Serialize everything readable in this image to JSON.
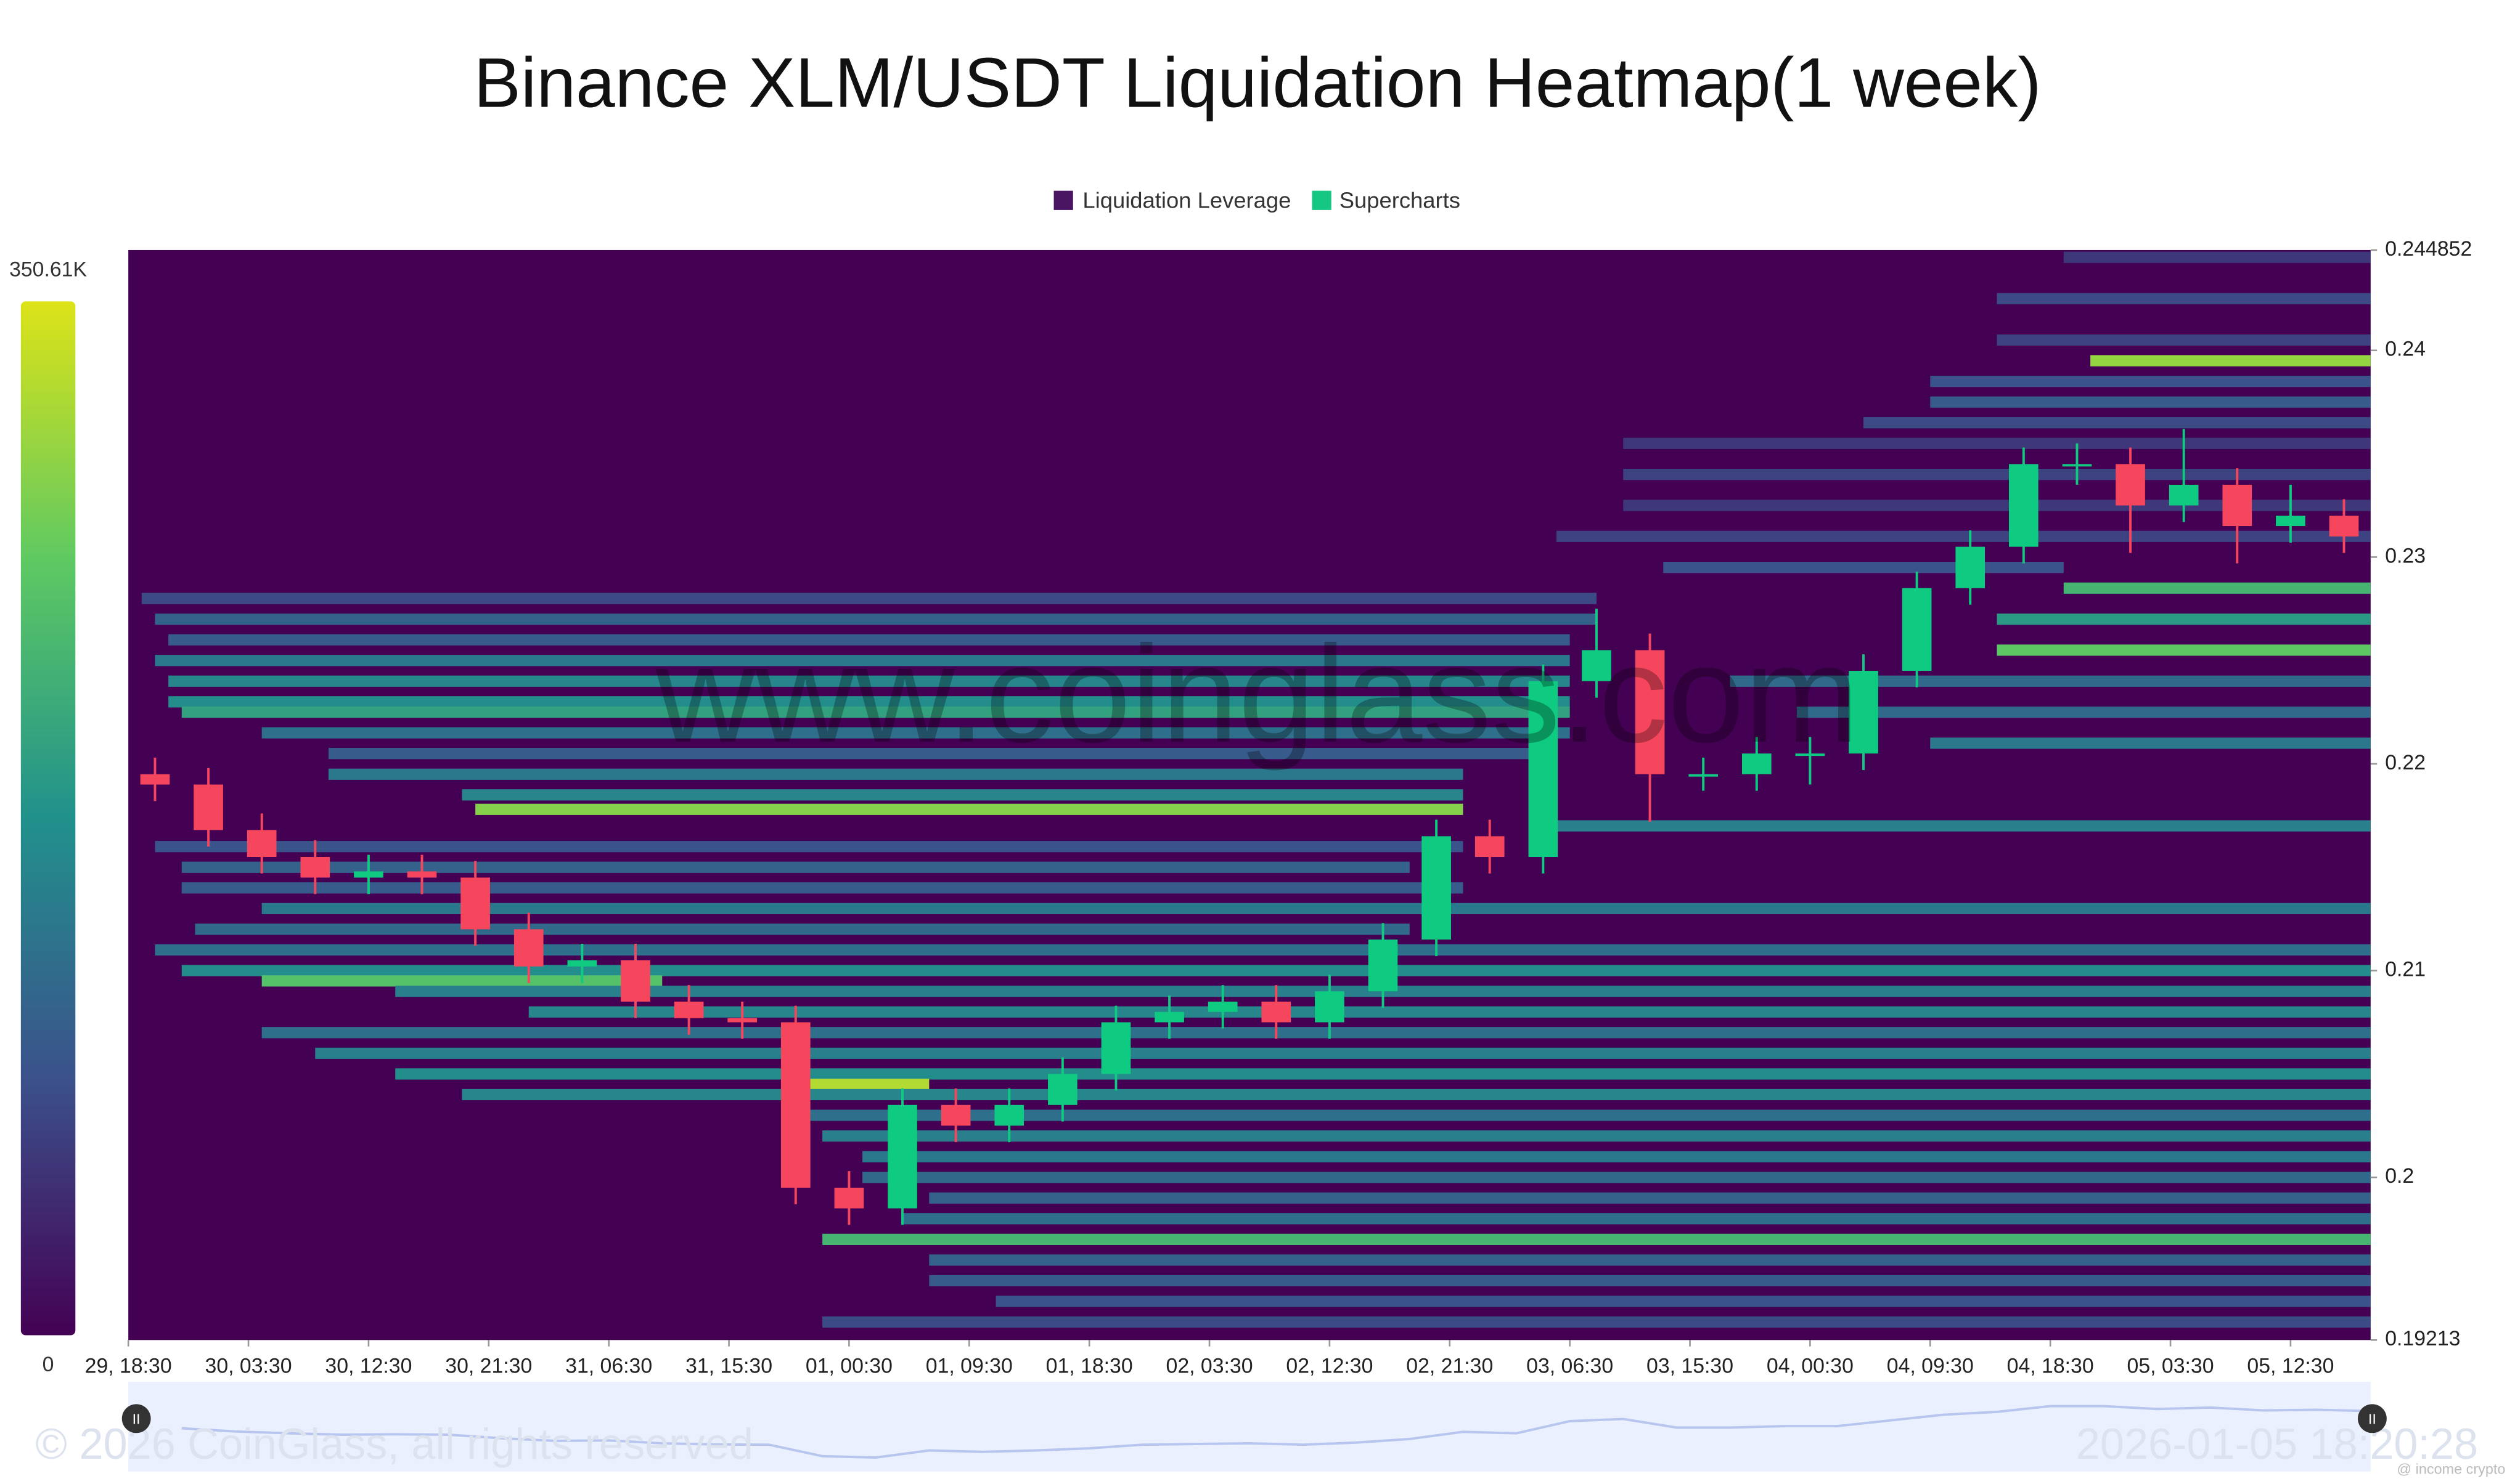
{
  "chart_data": {
    "type": "heatmap",
    "title": "Binance XLM/USDT Liquidation Heatmap(1 week)",
    "watermark": "www.coinglass.com",
    "footer_left": "© 2026 CoinGlass, all rights reserved",
    "footer_right": "2026-01-05 18:20:28",
    "credit": "@ income crypto",
    "xlim": [
      0,
      168
    ],
    "xticks": [
      {
        "value": 0,
        "label": "29, 18:30"
      },
      {
        "value": 9,
        "label": "30, 03:30"
      },
      {
        "value": 18,
        "label": "30, 12:30"
      },
      {
        "value": 27,
        "label": "30, 21:30"
      },
      {
        "value": 36,
        "label": "31, 06:30"
      },
      {
        "value": 45,
        "label": "31, 15:30"
      },
      {
        "value": 54,
        "label": "01, 00:30"
      },
      {
        "value": 63,
        "label": "01, 09:30"
      },
      {
        "value": 72,
        "label": "01, 18:30"
      },
      {
        "value": 81,
        "label": "02, 03:30"
      },
      {
        "value": 90,
        "label": "02, 12:30"
      },
      {
        "value": 99,
        "label": "02, 21:30"
      },
      {
        "value": 108,
        "label": "03, 06:30"
      },
      {
        "value": 117,
        "label": "03, 15:30"
      },
      {
        "value": 126,
        "label": "04, 00:30"
      },
      {
        "value": 135,
        "label": "04, 09:30"
      },
      {
        "value": 144,
        "label": "04, 18:30"
      },
      {
        "value": 153,
        "label": "05, 03:30"
      },
      {
        "value": 162,
        "label": "05, 12:30"
      }
    ],
    "ylim": [
      0.19213,
      0.244852
    ],
    "yticks": [
      0.19213,
      0.2,
      0.21,
      0.22,
      0.23,
      0.24,
      0.244852
    ],
    "colorbar": {
      "min": 0,
      "max": {
        "value": 350610,
        "label": "350.61K"
      }
    },
    "colorscale": [
      "#440154",
      "#3b528b",
      "#21918c",
      "#5ec962",
      "#dde318"
    ],
    "up_color": "#0ecb81",
    "down_color": "#f6465d",
    "series": [
      {
        "name": "Liquidation Leverage",
        "color": "#4a1663",
        "bands": [
          [
            0.2445,
            145,
            168,
            60000
          ],
          [
            0.2425,
            140,
            168,
            80000
          ],
          [
            0.2405,
            140,
            168,
            70000
          ],
          [
            0.2395,
            147,
            168,
            300000
          ],
          [
            0.2385,
            135,
            168,
            90000
          ],
          [
            0.2375,
            135,
            168,
            100000
          ],
          [
            0.2365,
            130,
            168,
            80000
          ],
          [
            0.2355,
            112,
            168,
            60000
          ],
          [
            0.234,
            112,
            168,
            70000
          ],
          [
            0.2325,
            112,
            168,
            60000
          ],
          [
            0.231,
            107,
            168,
            70000
          ],
          [
            0.2295,
            115,
            145,
            90000
          ],
          [
            0.2285,
            145,
            168,
            230000
          ],
          [
            0.227,
            140,
            168,
            190000
          ],
          [
            0.2255,
            140,
            168,
            260000
          ],
          [
            0.224,
            120,
            168,
            120000
          ],
          [
            0.2225,
            125,
            168,
            120000
          ],
          [
            0.221,
            135,
            168,
            140000
          ],
          [
            0.228,
            1,
            110,
            80000
          ],
          [
            0.227,
            2,
            110,
            110000
          ],
          [
            0.226,
            3,
            108,
            100000
          ],
          [
            0.225,
            2,
            108,
            140000
          ],
          [
            0.224,
            3,
            108,
            160000
          ],
          [
            0.223,
            3,
            108,
            170000
          ],
          [
            0.2225,
            4,
            108,
            200000
          ],
          [
            0.2215,
            10,
            108,
            130000
          ],
          [
            0.2205,
            15,
            106,
            100000
          ],
          [
            0.2195,
            15,
            100,
            140000
          ],
          [
            0.2185,
            25,
            100,
            160000
          ],
          [
            0.2178,
            26,
            100,
            290000
          ],
          [
            0.217,
            107,
            168,
            150000
          ],
          [
            0.216,
            2,
            100,
            90000
          ],
          [
            0.215,
            4,
            96,
            110000
          ],
          [
            0.214,
            4,
            100,
            100000
          ],
          [
            0.213,
            10,
            168,
            140000
          ],
          [
            0.212,
            5,
            96,
            120000
          ],
          [
            0.211,
            2,
            168,
            130000
          ],
          [
            0.21,
            4,
            168,
            170000
          ],
          [
            0.2095,
            10,
            40,
            250000
          ],
          [
            0.209,
            20,
            168,
            150000
          ],
          [
            0.208,
            30,
            168,
            160000
          ],
          [
            0.207,
            10,
            168,
            130000
          ],
          [
            0.206,
            14,
            168,
            150000
          ],
          [
            0.205,
            20,
            168,
            170000
          ],
          [
            0.2045,
            51,
            60,
            320000
          ],
          [
            0.204,
            25,
            168,
            160000
          ],
          [
            0.203,
            50,
            168,
            130000
          ],
          [
            0.202,
            52,
            168,
            150000
          ],
          [
            0.201,
            55,
            168,
            140000
          ],
          [
            0.2,
            55,
            168,
            120000
          ],
          [
            0.199,
            60,
            168,
            110000
          ],
          [
            0.198,
            58,
            168,
            130000
          ],
          [
            0.197,
            52,
            168,
            230000
          ],
          [
            0.196,
            60,
            168,
            110000
          ],
          [
            0.195,
            60,
            168,
            100000
          ],
          [
            0.194,
            65,
            168,
            90000
          ],
          [
            0.193,
            52,
            168,
            80000
          ]
        ]
      },
      {
        "name": "Supercharts",
        "color": "#16c784",
        "x": [
          0,
          4,
          8,
          12,
          16,
          20,
          24,
          28,
          32,
          36,
          40,
          44,
          48,
          52,
          56,
          60,
          64,
          68,
          72,
          76,
          80,
          84,
          88,
          92,
          96,
          100,
          104,
          108,
          112,
          116,
          120,
          124,
          128,
          132,
          136,
          140,
          144,
          148,
          152,
          156,
          160,
          164
        ],
        "open": [
          0.2195,
          0.219,
          0.2168,
          0.2155,
          0.2145,
          0.2148,
          0.2145,
          0.212,
          0.2102,
          0.2105,
          0.2085,
          0.2077,
          0.2075,
          0.1995,
          0.1985,
          0.2035,
          0.2025,
          0.2035,
          0.205,
          0.2075,
          0.208,
          0.2085,
          0.2075,
          0.209,
          0.2115,
          0.2165,
          0.2155,
          0.224,
          0.2255,
          0.2195,
          0.2195,
          0.2205,
          0.2205,
          0.2245,
          0.2285,
          0.2305,
          0.2345,
          0.2345,
          0.2325,
          0.2335,
          0.2315,
          0.232
        ],
        "close": [
          0.219,
          0.2168,
          0.2155,
          0.2145,
          0.2148,
          0.2145,
          0.212,
          0.2102,
          0.2105,
          0.2085,
          0.2077,
          0.2075,
          0.1995,
          0.1985,
          0.2035,
          0.2025,
          0.2035,
          0.205,
          0.2075,
          0.208,
          0.2085,
          0.2075,
          0.209,
          0.2115,
          0.2165,
          0.2155,
          0.224,
          0.2255,
          0.2195,
          0.2195,
          0.2205,
          0.2205,
          0.2245,
          0.2285,
          0.2305,
          0.2345,
          0.2345,
          0.2325,
          0.2335,
          0.2315,
          0.232,
          0.231
        ],
        "high": [
          0.2203,
          0.2198,
          0.2176,
          0.2163,
          0.2156,
          0.2156,
          0.2153,
          0.2128,
          0.2113,
          0.2113,
          0.2093,
          0.2085,
          0.2083,
          0.2003,
          0.2043,
          0.2043,
          0.2043,
          0.2058,
          0.2083,
          0.2088,
          0.2093,
          0.2093,
          0.2098,
          0.2123,
          0.2173,
          0.2173,
          0.2248,
          0.2275,
          0.2263,
          0.2203,
          0.2213,
          0.2213,
          0.2253,
          0.2293,
          0.2313,
          0.2353,
          0.2355,
          0.2353,
          0.2362,
          0.2343,
          0.2335,
          0.2328
        ],
        "low": [
          0.2182,
          0.216,
          0.2147,
          0.2137,
          0.2137,
          0.2137,
          0.2112,
          0.2094,
          0.2094,
          0.2077,
          0.2069,
          0.2067,
          0.1987,
          0.1977,
          0.1977,
          0.2017,
          0.2017,
          0.2027,
          0.2042,
          0.2067,
          0.2072,
          0.2067,
          0.2067,
          0.2082,
          0.2107,
          0.2147,
          0.2147,
          0.2232,
          0.2172,
          0.2187,
          0.2187,
          0.219,
          0.2197,
          0.2237,
          0.2277,
          0.2297,
          0.2335,
          0.2302,
          0.2317,
          0.2297,
          0.2307,
          0.2302
        ]
      }
    ]
  }
}
